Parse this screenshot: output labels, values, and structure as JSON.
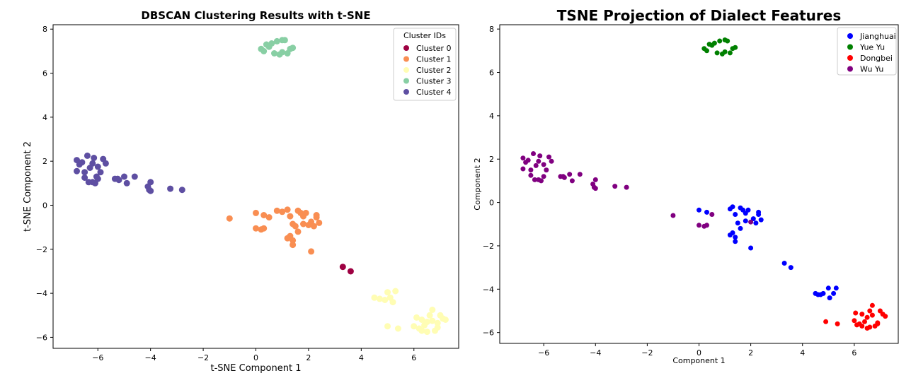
{
  "chart_data": [
    {
      "type": "scatter",
      "title": "DBSCAN Clustering Results with t-SNE",
      "xlabel": "t-SNE Component 1",
      "ylabel": "t-SNE Component 2",
      "xlim": [
        -7.7,
        7.7
      ],
      "ylim": [
        -6.5,
        8.2
      ],
      "x_ticks": [
        -6,
        -4,
        -2,
        0,
        2,
        4,
        6
      ],
      "y_ticks": [
        -6,
        -4,
        -2,
        0,
        2,
        4,
        6,
        8
      ],
      "grid": false,
      "legend": {
        "title": "Cluster IDs",
        "placement": "top-right"
      },
      "series": [
        {
          "name": "Cluster 0",
          "color": "#9e0142",
          "points": [
            [
              3.3,
              -2.8
            ],
            [
              3.6,
              -3.0
            ]
          ]
        },
        {
          "name": "Cluster 1",
          "color": "#f98e52",
          "points": [
            [
              -1.0,
              -0.6
            ],
            [
              0.0,
              -0.35
            ],
            [
              0.0,
              -1.05
            ],
            [
              0.2,
              -1.1
            ],
            [
              0.3,
              -1.05
            ],
            [
              0.3,
              -0.45
            ],
            [
              0.5,
              -0.55
            ],
            [
              0.8,
              -0.25
            ],
            [
              1.0,
              -0.3
            ],
            [
              1.2,
              -0.2
            ],
            [
              1.3,
              -0.5
            ],
            [
              1.4,
              -0.85
            ],
            [
              1.6,
              -0.25
            ],
            [
              1.7,
              -0.35
            ],
            [
              1.8,
              -0.5
            ],
            [
              1.9,
              -0.35
            ],
            [
              1.5,
              -0.95
            ],
            [
              1.3,
              -1.4
            ],
            [
              1.4,
              -1.6
            ],
            [
              1.6,
              -1.2
            ],
            [
              1.8,
              -0.85
            ],
            [
              2.1,
              -0.75
            ],
            [
              2.2,
              -0.95
            ],
            [
              2.3,
              -0.45
            ],
            [
              2.4,
              -0.8
            ],
            [
              1.4,
              -1.8
            ],
            [
              2.1,
              -2.1
            ],
            [
              2.0,
              -0.9
            ],
            [
              1.2,
              -1.5
            ],
            [
              2.3,
              -0.55
            ]
          ]
        },
        {
          "name": "Cluster 2",
          "color": "#fffdb4",
          "points": [
            [
              4.5,
              -4.2
            ],
            [
              4.7,
              -4.25
            ],
            [
              4.9,
              -4.3
            ],
            [
              5.0,
              -3.95
            ],
            [
              5.1,
              -4.2
            ],
            [
              5.2,
              -4.4
            ],
            [
              5.3,
              -3.9
            ],
            [
              5.0,
              -5.5
            ],
            [
              5.4,
              -5.6
            ],
            [
              6.0,
              -5.5
            ],
            [
              6.1,
              -5.1
            ],
            [
              6.2,
              -5.6
            ],
            [
              6.3,
              -5.7
            ],
            [
              6.4,
              -5.45
            ],
            [
              6.5,
              -5.75
            ],
            [
              6.6,
              -5.0
            ],
            [
              6.7,
              -5.25
            ],
            [
              6.8,
              -5.7
            ],
            [
              6.9,
              -5.55
            ],
            [
              7.0,
              -5.0
            ],
            [
              7.1,
              -5.15
            ],
            [
              7.2,
              -5.2
            ],
            [
              6.7,
              -4.75
            ],
            [
              6.5,
              -5.3
            ],
            [
              6.3,
              -5.2
            ],
            [
              6.9,
              -5.35
            ]
          ]
        },
        {
          "name": "Cluster 3",
          "color": "#88cfa4",
          "points": [
            [
              0.2,
              7.1
            ],
            [
              0.3,
              7.0
            ],
            [
              0.4,
              7.3
            ],
            [
              0.6,
              7.35
            ],
            [
              0.7,
              6.9
            ],
            [
              0.8,
              7.45
            ],
            [
              0.9,
              6.85
            ],
            [
              1.0,
              7.5
            ],
            [
              1.1,
              7.5
            ],
            [
              1.2,
              6.9
            ],
            [
              1.3,
              7.1
            ],
            [
              1.4,
              7.15
            ],
            [
              1.0,
              6.95
            ],
            [
              0.5,
              7.2
            ]
          ]
        },
        {
          "name": "Cluster 4",
          "color": "#5e4fa2",
          "points": [
            [
              -6.8,
              2.05
            ],
            [
              -6.8,
              1.55
            ],
            [
              -6.6,
              1.95
            ],
            [
              -6.5,
              1.5
            ],
            [
              -6.4,
              2.25
            ],
            [
              -6.3,
              1.7
            ],
            [
              -6.2,
              1.05
            ],
            [
              -6.1,
              1.0
            ],
            [
              -6.2,
              1.9
            ],
            [
              -6.0,
              1.2
            ],
            [
              -6.0,
              1.75
            ],
            [
              -5.9,
              1.5
            ],
            [
              -5.8,
              2.1
            ],
            [
              -5.7,
              1.9
            ],
            [
              -6.5,
              1.25
            ],
            [
              -6.7,
              1.85
            ],
            [
              -6.15,
              2.15
            ],
            [
              -5.35,
              1.2
            ],
            [
              -5.25,
              1.2
            ],
            [
              -5.2,
              1.15
            ],
            [
              -5.0,
              1.3
            ],
            [
              -4.9,
              1.0
            ],
            [
              -4.6,
              1.3
            ],
            [
              -4.1,
              0.85
            ],
            [
              -4.05,
              0.7
            ],
            [
              -4.0,
              1.05
            ],
            [
              -4.0,
              0.65
            ],
            [
              -3.25,
              0.75
            ],
            [
              -2.8,
              0.7
            ],
            [
              -6.35,
              1.05
            ],
            [
              -6.05,
              1.3
            ]
          ]
        }
      ]
    },
    {
      "type": "scatter",
      "title": "TSNE Projection of Dialect Features",
      "xlabel": "Component 1",
      "ylabel": "Component 2",
      "xlim": [
        -7.7,
        7.7
      ],
      "ylim": [
        -6.5,
        8.2
      ],
      "x_ticks": [
        -6,
        -4,
        -2,
        0,
        2,
        4,
        6
      ],
      "y_ticks": [
        -6,
        -4,
        -2,
        0,
        2,
        4,
        6,
        8
      ],
      "grid": false,
      "legend": {
        "placement": "top-right"
      },
      "series": [
        {
          "name": "Jianghuai",
          "color": "#0000ff",
          "points": [
            [
              0.0,
              -0.35
            ],
            [
              0.3,
              -0.45
            ],
            [
              1.2,
              -0.3
            ],
            [
              1.3,
              -0.2
            ],
            [
              1.4,
              -0.55
            ],
            [
              1.6,
              -0.25
            ],
            [
              1.7,
              -0.35
            ],
            [
              1.8,
              -0.5
            ],
            [
              1.9,
              -0.35
            ],
            [
              1.5,
              -0.95
            ],
            [
              1.3,
              -1.4
            ],
            [
              1.4,
              -1.6
            ],
            [
              1.6,
              -1.2
            ],
            [
              1.8,
              -0.85
            ],
            [
              2.1,
              -0.75
            ],
            [
              2.2,
              -0.95
            ],
            [
              2.3,
              -0.45
            ],
            [
              2.4,
              -0.8
            ],
            [
              1.4,
              -1.8
            ],
            [
              2.0,
              -2.1
            ],
            [
              2.3,
              -0.55
            ],
            [
              1.2,
              -1.5
            ],
            [
              3.3,
              -2.8
            ],
            [
              3.55,
              -3.0
            ],
            [
              4.5,
              -4.2
            ],
            [
              4.6,
              -4.25
            ],
            [
              4.8,
              -4.2
            ],
            [
              5.0,
              -3.95
            ],
            [
              5.05,
              -4.4
            ],
            [
              5.2,
              -4.2
            ],
            [
              5.3,
              -3.95
            ],
            [
              4.7,
              -4.25
            ]
          ]
        },
        {
          "name": "Yue Yu",
          "color": "#008000",
          "points": [
            [
              0.2,
              7.1
            ],
            [
              0.3,
              7.0
            ],
            [
              0.4,
              7.3
            ],
            [
              0.6,
              7.35
            ],
            [
              0.7,
              6.9
            ],
            [
              0.8,
              7.45
            ],
            [
              0.9,
              6.85
            ],
            [
              1.0,
              7.5
            ],
            [
              1.1,
              7.45
            ],
            [
              1.2,
              6.9
            ],
            [
              1.3,
              7.1
            ],
            [
              1.4,
              7.15
            ],
            [
              1.0,
              6.95
            ],
            [
              0.5,
              7.25
            ]
          ]
        },
        {
          "name": "Dongbei",
          "color": "#ff0000",
          "points": [
            [
              4.9,
              -5.5
            ],
            [
              5.35,
              -5.6
            ],
            [
              6.0,
              -5.45
            ],
            [
              6.05,
              -5.1
            ],
            [
              6.2,
              -5.6
            ],
            [
              6.3,
              -5.7
            ],
            [
              6.4,
              -5.5
            ],
            [
              6.5,
              -5.8
            ],
            [
              6.6,
              -5.0
            ],
            [
              6.7,
              -5.2
            ],
            [
              6.8,
              -5.7
            ],
            [
              6.9,
              -5.55
            ],
            [
              7.0,
              -5.0
            ],
            [
              7.1,
              -5.15
            ],
            [
              7.2,
              -5.25
            ],
            [
              6.7,
              -4.75
            ],
            [
              6.5,
              -5.3
            ],
            [
              6.3,
              -5.15
            ],
            [
              6.9,
              -5.6
            ],
            [
              6.1,
              -5.65
            ],
            [
              6.6,
              -5.75
            ]
          ]
        },
        {
          "name": "Wu Yu",
          "color": "#800080",
          "points": [
            [
              -6.8,
              2.05
            ],
            [
              -6.8,
              1.55
            ],
            [
              -6.6,
              1.95
            ],
            [
              -6.5,
              1.5
            ],
            [
              -6.4,
              2.25
            ],
            [
              -6.3,
              1.7
            ],
            [
              -6.2,
              1.05
            ],
            [
              -6.1,
              1.0
            ],
            [
              -6.2,
              1.9
            ],
            [
              -6.0,
              1.2
            ],
            [
              -6.0,
              1.75
            ],
            [
              -5.9,
              1.5
            ],
            [
              -5.8,
              2.1
            ],
            [
              -5.7,
              1.9
            ],
            [
              -6.5,
              1.25
            ],
            [
              -6.7,
              1.85
            ],
            [
              -6.15,
              2.15
            ],
            [
              -5.35,
              1.2
            ],
            [
              -5.25,
              1.2
            ],
            [
              -5.2,
              1.15
            ],
            [
              -5.0,
              1.3
            ],
            [
              -4.9,
              1.0
            ],
            [
              -4.6,
              1.3
            ],
            [
              -4.1,
              0.85
            ],
            [
              -4.05,
              0.7
            ],
            [
              -4.0,
              1.05
            ],
            [
              -4.0,
              0.65
            ],
            [
              -3.25,
              0.75
            ],
            [
              -2.8,
              0.7
            ],
            [
              -1.0,
              -0.6
            ],
            [
              0.0,
              -1.05
            ],
            [
              0.2,
              -1.1
            ],
            [
              0.3,
              -1.05
            ],
            [
              0.5,
              -0.55
            ],
            [
              2.0,
              -0.9
            ],
            [
              -6.35,
              1.05
            ]
          ]
        }
      ]
    }
  ]
}
